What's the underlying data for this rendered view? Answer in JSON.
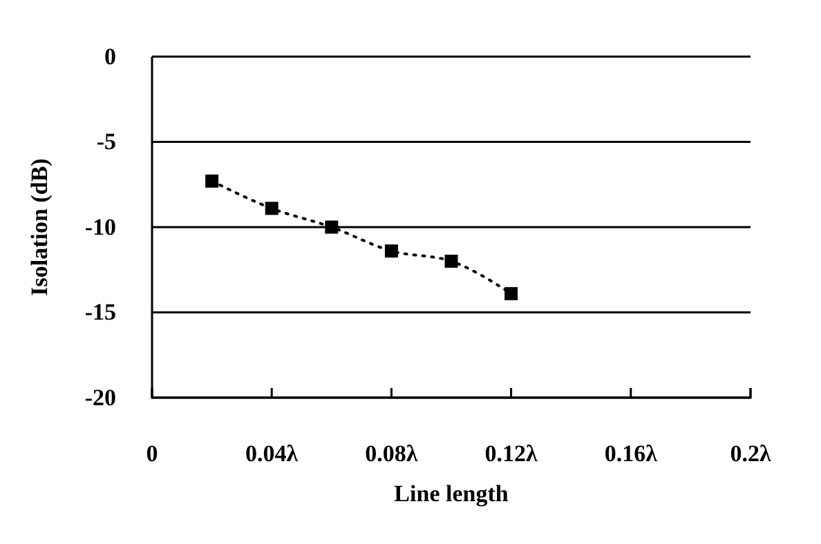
{
  "chart_data": {
    "type": "line",
    "xlabel": "Line length",
    "ylabel": "Isolation (dB)",
    "x": [
      0.02,
      0.04,
      0.06,
      0.08,
      0.1,
      0.12
    ],
    "series": [
      {
        "color": "#000000",
        "values": [
          -7.3,
          -8.9,
          -10.0,
          -11.4,
          -12.0,
          -13.9
        ]
      }
    ],
    "xlim": [
      0,
      0.2
    ],
    "xticks": [
      0,
      {
        "value": 0.04,
        "label": "0.04λ"
      },
      {
        "value": 0.08,
        "label": "0.08λ"
      },
      {
        "value": 0.12,
        "label": "0.12λ"
      },
      {
        "value": 0.16,
        "label": "0.16λ"
      },
      {
        "value": 0.2,
        "label": "0.2λ"
      }
    ],
    "ylim": [
      -20,
      0
    ],
    "yticks": [
      -20,
      -15,
      -10,
      -5,
      0
    ],
    "grid": "y",
    "marker": "square",
    "line_style": "dotted"
  }
}
